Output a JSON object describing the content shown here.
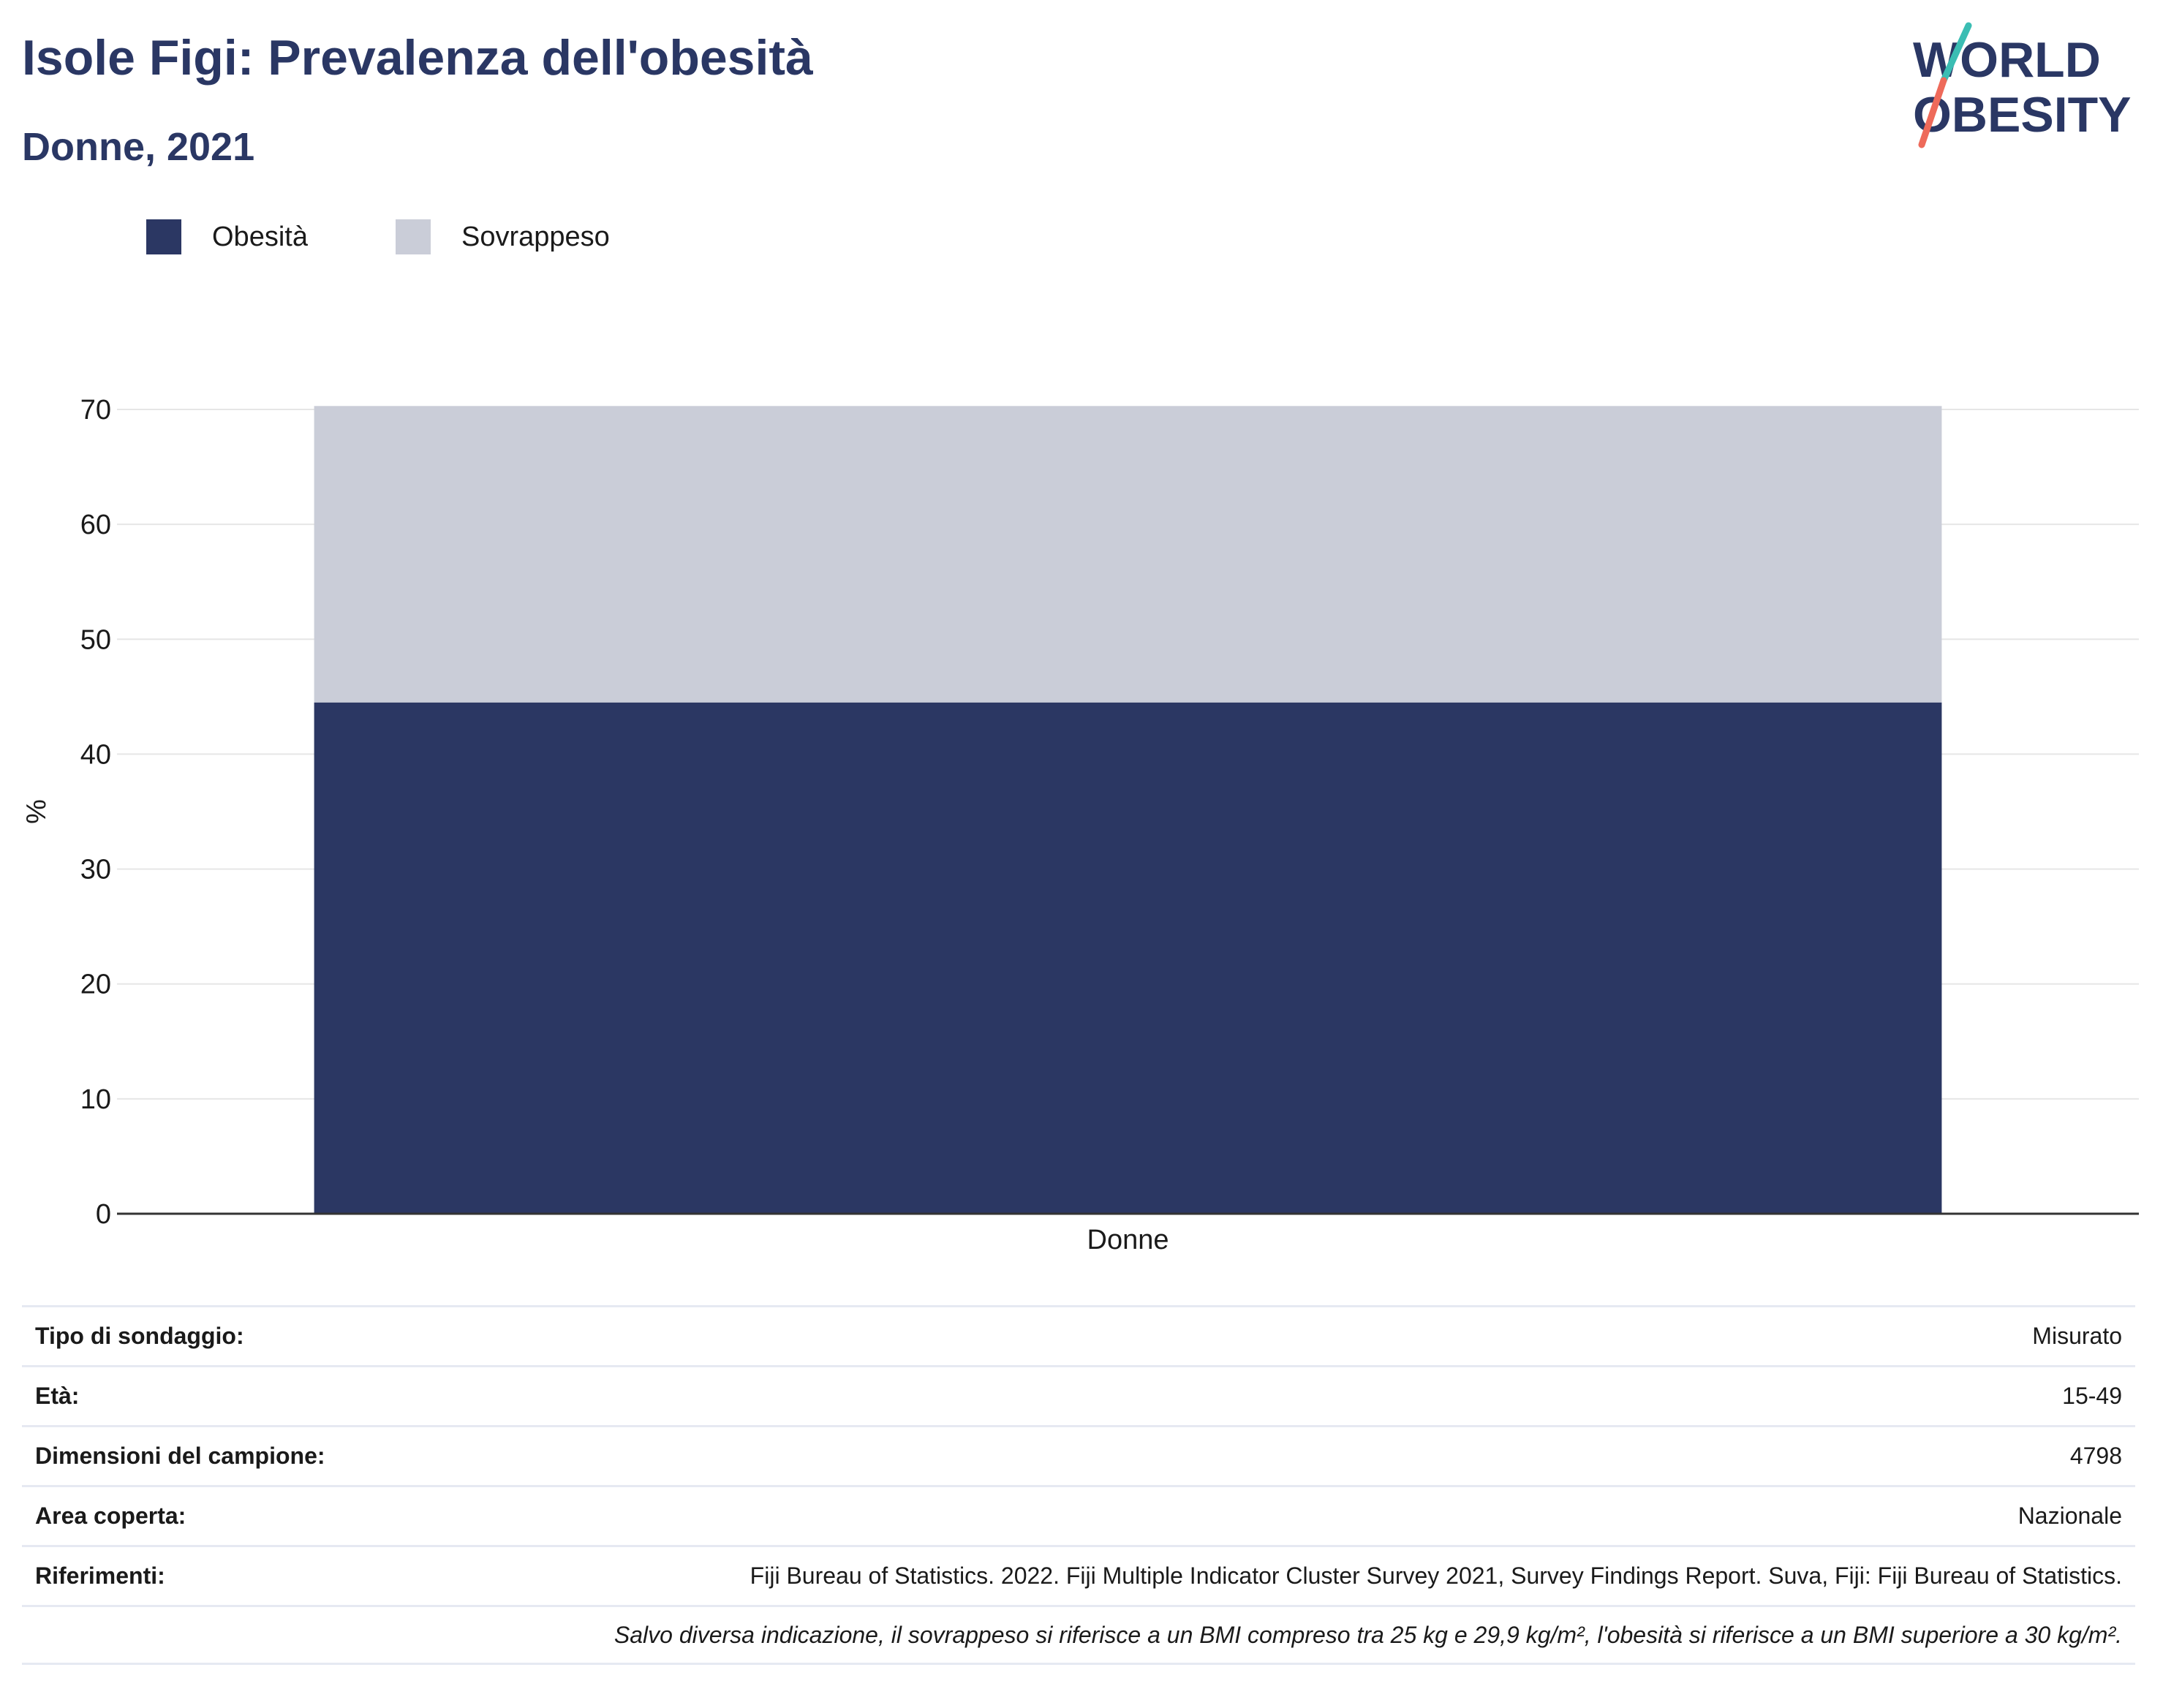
{
  "header": {
    "title": "Isole Figi: Prevalenza dell'obesità",
    "subtitle": "Donne, 2021"
  },
  "logo": {
    "line1": "WORLD",
    "line2": "OBESITY"
  },
  "legend": [
    {
      "label": "Obesità",
      "color": "#2b3763"
    },
    {
      "label": "Sovrappeso",
      "color": "#cacdd8"
    }
  ],
  "chart_data": {
    "type": "bar",
    "stacked": true,
    "categories": [
      "Donne"
    ],
    "series": [
      {
        "name": "Obesità",
        "values": [
          44.5
        ],
        "color": "#2b3763"
      },
      {
        "name": "Sovrappeso",
        "values": [
          25.8
        ],
        "color": "#cacdd8"
      }
    ],
    "ylabel": "%",
    "ylim": [
      0,
      70
    ],
    "yticks": [
      0,
      10,
      20,
      30,
      40,
      50,
      60,
      70
    ],
    "grid": true,
    "legend_position": "top-left"
  },
  "info": {
    "rows": [
      {
        "label": "Tipo di sondaggio:",
        "value": "Misurato"
      },
      {
        "label": "Età:",
        "value": "15-49"
      },
      {
        "label": "Dimensioni del campione:",
        "value": "4798"
      },
      {
        "label": "Area coperta:",
        "value": "Nazionale"
      },
      {
        "label": "Riferimenti:",
        "value": "Fiji Bureau of Statistics. 2022. Fiji Multiple Indicator Cluster Survey 2021, Survey Findings Report. Suva, Fiji: Fiji Bureau of Statistics."
      }
    ],
    "note": "Salvo diversa indicazione, il sovrappeso si riferisce a un BMI compreso tra 25 kg e 29,9 kg/m², l'obesità si riferisce a un BMI superiore a 30 kg/m²."
  }
}
